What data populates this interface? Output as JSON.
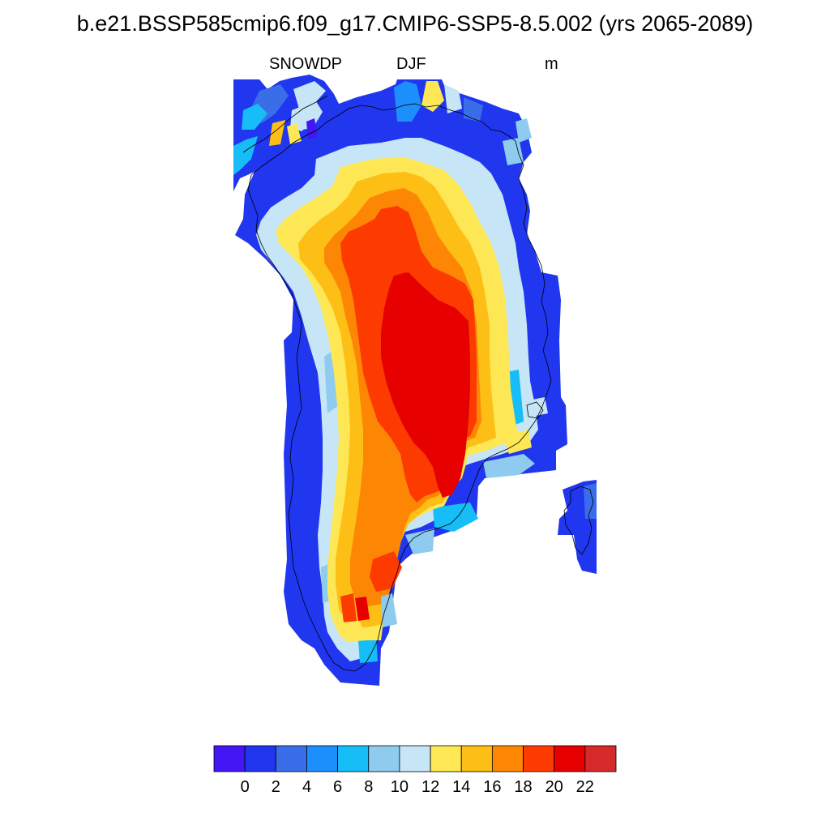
{
  "title": "b.e21.BSSP585cmip6.f09_g17.CMIP6-SSP5-8.5.002 (yrs 2065-2089)",
  "subtitle": {
    "left": "SNOWDP",
    "center": "DJF",
    "right": "m"
  },
  "colorbar": {
    "colors": [
      "#4416f4",
      "#2036ef",
      "#3a6ee9",
      "#1d8ffd",
      "#16bdf6",
      "#8ecbee",
      "#c6e5f6",
      "#fde755",
      "#fdbf15",
      "#fd8705",
      "#fd3b00",
      "#e60000",
      "#d42a2a"
    ],
    "labels": [
      "0",
      "2",
      "4",
      "6",
      "8",
      "10",
      "12",
      "14",
      "16",
      "18",
      "20",
      "22"
    ]
  },
  "colors": {
    "outline": "#000000",
    "background": "#ffffff"
  }
}
